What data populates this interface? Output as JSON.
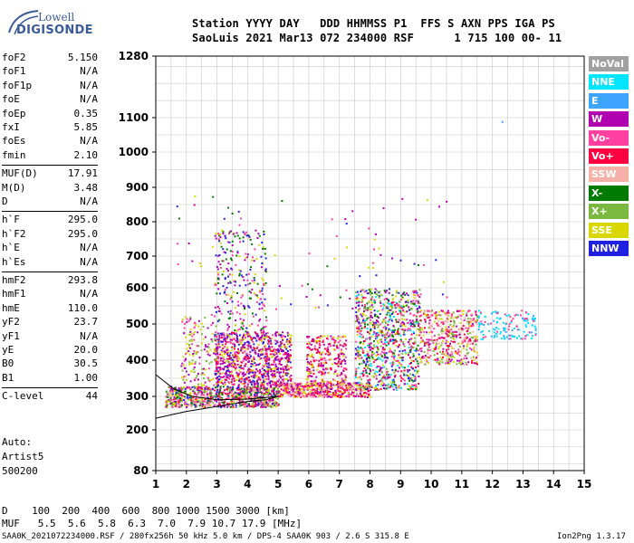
{
  "logo": {
    "line1": "Lowell",
    "line2": "DIGISONDE"
  },
  "header": {
    "row1": "Station YYYY DAY   DDD HHMMSS P1  FFS S AXN PPS IGA PS",
    "row2": "SaoLuis 2021 Mar13 072 234000 RSF      1 715 100 00- 11"
  },
  "params": [
    {
      "k": "foF2",
      "v": "5.150"
    },
    {
      "k": "foF1",
      "v": "N/A"
    },
    {
      "k": "foF1p",
      "v": "N/A"
    },
    {
      "k": "foE",
      "v": "N/A"
    },
    {
      "k": "foEp",
      "v": "0.35"
    },
    {
      "k": "fxI",
      "v": "5.85"
    },
    {
      "k": "foEs",
      "v": "N/A"
    },
    {
      "k": "fmin",
      "v": "2.10"
    },
    {
      "k": "MUF(D)",
      "v": "17.91"
    },
    {
      "k": "M(D)",
      "v": "3.48"
    },
    {
      "k": "D",
      "v": "N/A"
    },
    {
      "k": "h`F",
      "v": "295.0"
    },
    {
      "k": "h`F2",
      "v": "295.0"
    },
    {
      "k": "h`E",
      "v": "N/A"
    },
    {
      "k": "h`Es",
      "v": "N/A"
    },
    {
      "k": "hmF2",
      "v": "293.8"
    },
    {
      "k": "hmF1",
      "v": "N/A"
    },
    {
      "k": "hmE",
      "v": "110.0"
    },
    {
      "k": "yF2",
      "v": "23.7"
    },
    {
      "k": "yF1",
      "v": "N/A"
    },
    {
      "k": "yE",
      "v": "20.0"
    },
    {
      "k": "B0",
      "v": "30.5"
    },
    {
      "k": "B1",
      "v": "1.00"
    },
    {
      "k": "C-level",
      "v": "44"
    }
  ],
  "auto": {
    "l1": "Auto:",
    "l2": "Artist5",
    "l3": "500200"
  },
  "legend": [
    {
      "label": "NoVal",
      "color": "#a0a0a0"
    },
    {
      "label": "NNE",
      "color": "#00e5ff"
    },
    {
      "label": "E",
      "color": "#3da5ff"
    },
    {
      "label": "W",
      "color": "#b000b0"
    },
    {
      "label": "Vo-",
      "color": "#ff40a0"
    },
    {
      "label": "Vo+",
      "color": "#ff0040"
    },
    {
      "label": "SSW",
      "color": "#f5b0a8"
    },
    {
      "label": "X-",
      "color": "#007a00"
    },
    {
      "label": "X+",
      "color": "#7ab840"
    },
    {
      "label": "SSE",
      "color": "#d8d800"
    },
    {
      "label": "NNW",
      "color": "#2020e0"
    }
  ],
  "footer": {
    "d_row": "D    100  200  400  600  800 1000 1500 3000 [km]",
    "muf_row": "MUF   5.5  5.6  5.8  6.3  7.0  7.9 10.7 17.9 [MHz]",
    "file_row": "SAA0K_2021072234000.RSF / 280fx256h 50 kHz 5.0 km / DPS-4 SAA0K 903 / 2.6 S 315.8 E",
    "version": "Ion2Png 1.3.17"
  },
  "chart_data": {
    "type": "scatter",
    "xlim": [
      1,
      15
    ],
    "ylim": [
      80,
      1280
    ],
    "x_ticks": [
      "1",
      "2",
      "3",
      "4",
      "5",
      "6",
      "7",
      "8",
      "9",
      "10",
      "11",
      "12",
      "13",
      "14",
      "15"
    ],
    "y_ticks": [
      "80",
      "200",
      "300",
      "400",
      "500",
      "600",
      "700",
      "800",
      "900",
      "1000",
      "1100",
      "1280"
    ],
    "y_tick_values": [
      80,
      200,
      300,
      400,
      500,
      600,
      700,
      800,
      900,
      1000,
      1100,
      1280
    ],
    "grid": true,
    "legend_position": "right",
    "clusters": [
      {
        "x0": 1.3,
        "x1": 5.0,
        "y0": 270,
        "y1": 330,
        "n": 900,
        "colors": [
          "#b000b0",
          "#ff40a0",
          "#007a00",
          "#d8d800",
          "#ff0040",
          "#2020e0",
          "#7ab840",
          "#f5b0a8"
        ]
      },
      {
        "x0": 2.9,
        "x1": 5.4,
        "y0": 330,
        "y1": 480,
        "n": 900,
        "colors": [
          "#b000b0",
          "#b000b0",
          "#ff40a0",
          "#2020e0",
          "#d8d800",
          "#ff0040"
        ]
      },
      {
        "x0": 2.9,
        "x1": 4.6,
        "y0": 480,
        "y1": 780,
        "n": 260,
        "colors": [
          "#b000b0",
          "#ff40a0",
          "#d8d800",
          "#2020e0",
          "#007a00"
        ]
      },
      {
        "x0": 1.8,
        "x1": 3.0,
        "y0": 330,
        "y1": 530,
        "n": 160,
        "colors": [
          "#d8d800",
          "#b000b0",
          "#ff40a0",
          "#7ab840"
        ]
      },
      {
        "x0": 5.0,
        "x1": 8.0,
        "y0": 300,
        "y1": 340,
        "n": 500,
        "colors": [
          "#ff40a0",
          "#b000b0",
          "#ff0040",
          "#f5b0a8",
          "#d8d800"
        ]
      },
      {
        "x0": 5.9,
        "x1": 7.2,
        "y0": 340,
        "y1": 470,
        "n": 280,
        "colors": [
          "#b000b0",
          "#ff40a0",
          "#d8d800",
          "#ff0040"
        ]
      },
      {
        "x0": 7.5,
        "x1": 9.6,
        "y0": 320,
        "y1": 600,
        "n": 900,
        "colors": [
          "#b000b0",
          "#ff40a0",
          "#ff0040",
          "#2020e0",
          "#007a00",
          "#d8d800",
          "#7ab840",
          "#00e5ff"
        ]
      },
      {
        "x0": 9.6,
        "x1": 11.5,
        "y0": 390,
        "y1": 540,
        "n": 480,
        "colors": [
          "#d8d800",
          "#ff40a0",
          "#b000b0",
          "#ff0040",
          "#f5b0a8",
          "#7ab840"
        ]
      },
      {
        "x0": 11.5,
        "x1": 13.4,
        "y0": 460,
        "y1": 540,
        "n": 140,
        "colors": [
          "#00e5ff",
          "#3da5ff",
          "#00e5ff",
          "#ff40a0"
        ]
      },
      {
        "x0": 1.5,
        "x1": 10.5,
        "y0": 540,
        "y1": 880,
        "n": 90,
        "colors": [
          "#b000b0",
          "#ff40a0",
          "#d8d800",
          "#007a00",
          "#2020e0"
        ]
      }
    ],
    "curve": [
      [
        1.0,
        235
      ],
      [
        2.0,
        255
      ],
      [
        3.0,
        270
      ],
      [
        4.0,
        285
      ],
      [
        4.6,
        290
      ],
      [
        5.0,
        300
      ]
    ],
    "curve2": [
      [
        1.0,
        360
      ],
      [
        1.6,
        320
      ],
      [
        2.2,
        300
      ],
      [
        3.0,
        290
      ],
      [
        4.0,
        292
      ],
      [
        5.0,
        300
      ]
    ],
    "outlier": [
      12.3,
      1090
    ]
  }
}
